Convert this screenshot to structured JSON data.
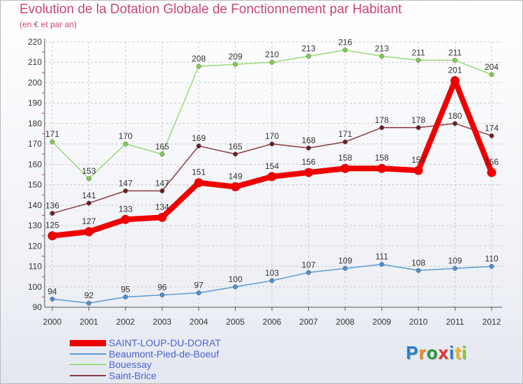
{
  "chart_data": {
    "type": "line",
    "title": "Evolution de la Dotation Globale de Fonctionnement par Habitant",
    "subtitle": "(en € et par an)",
    "x": [
      "2000",
      "2001",
      "2002",
      "2003",
      "2004",
      "2005",
      "2006",
      "2007",
      "2008",
      "2009",
      "2010",
      "2011",
      "2012"
    ],
    "yticks": [
      "90",
      "100",
      "110",
      "120",
      "130",
      "140",
      "150",
      "160",
      "170",
      "180",
      "190",
      "200",
      "210",
      "220"
    ],
    "ylim": [
      90,
      220
    ],
    "grid": true,
    "series": [
      {
        "name": "Beaumont-Pied-de-Boeuf",
        "color": "#5b9bd5",
        "marker": "#4f8fd0",
        "values": [
          94,
          92,
          95,
          96,
          97,
          100,
          103,
          107,
          109,
          111,
          108,
          109,
          110
        ],
        "labels": [
          "94",
          "92",
          "95",
          "96",
          "97",
          "100",
          "103",
          "107",
          "109",
          "111",
          "108",
          "109",
          "110"
        ]
      },
      {
        "name": "Bouessay",
        "color": "#99d977",
        "marker": "#7fcf4a",
        "values": [
          171,
          153,
          170,
          165,
          208,
          209,
          210,
          213,
          216,
          213,
          211,
          211,
          204
        ],
        "labels": [
          "171",
          "153",
          "170",
          "165",
          "208",
          "209",
          "210",
          "213",
          "216",
          "213",
          "211",
          "211",
          "204"
        ]
      },
      {
        "name": "Saint-Brice",
        "color": "#8a3a40",
        "marker": "#6a1f22",
        "values": [
          136,
          141,
          147,
          147,
          169,
          165,
          170,
          168,
          171,
          178,
          178,
          180,
          174
        ],
        "labels": [
          "136",
          "141",
          "147",
          "147",
          "169",
          "165",
          "170",
          "168",
          "171",
          "178",
          "178",
          "180",
          "174"
        ]
      },
      {
        "name": "SAINT-LOUP-DU-DORAT",
        "color": "#ee0000",
        "marker": "#ee0000",
        "values": [
          125,
          127,
          133,
          134,
          151,
          149,
          154,
          156,
          158,
          158,
          157,
          201,
          156
        ],
        "labels": [
          "125",
          "127",
          "133",
          "134",
          "151",
          "149",
          "154",
          "156",
          "158",
          "158",
          "157",
          "201",
          "156"
        ]
      }
    ],
    "legend": [
      {
        "name": "SAINT-LOUP-DU-DORAT",
        "color": "#ee0000"
      },
      {
        "name": "Beaumont-Pied-de-Boeuf",
        "color": "#5b9bd5"
      },
      {
        "name": "Bouessay",
        "color": "#99d977"
      },
      {
        "name": "Saint-Brice",
        "color": "#8a3a40"
      }
    ]
  },
  "logo": {
    "letters": [
      "P",
      "r",
      "o",
      "x",
      "i",
      "t",
      "i"
    ],
    "colors": [
      "#2a7fd0",
      "#f08a1c",
      "#2a9a3a",
      "#e03030",
      "#2a7fd0",
      "#f0b81c",
      "#8cc63f"
    ]
  }
}
